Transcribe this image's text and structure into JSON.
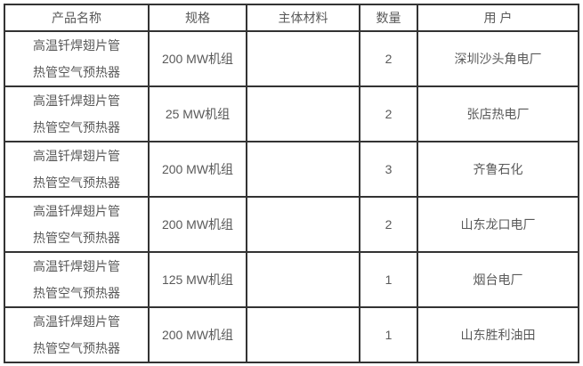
{
  "colors": {
    "border": "#333333",
    "text": "#595959",
    "background": "#ffffff"
  },
  "table": {
    "headers": {
      "product": "产品名称",
      "spec": "规格",
      "material": "主体材料",
      "qty": "数量",
      "customer": "用 户"
    },
    "rows": [
      {
        "product": "高温钎焊翅片管\n热管空气预热器",
        "spec": "200 MW机组",
        "material": "",
        "qty": "2",
        "customer": "深圳沙头角电厂"
      },
      {
        "product": "高温钎焊翅片管\n热管空气预热器",
        "spec": "25 MW机组",
        "material": "",
        "qty": "2",
        "customer": "张店热电厂"
      },
      {
        "product": "高温钎焊翅片管\n热管空气预热器",
        "spec": "200 MW机组",
        "material": "",
        "qty": "3",
        "customer": "齐鲁石化"
      },
      {
        "product": "高温钎焊翅片管\n热管空气预热器",
        "spec": "200 MW机组",
        "material": "",
        "qty": "2",
        "customer": "山东龙口电厂"
      },
      {
        "product": "高温钎焊翅片管\n热管空气预热器",
        "spec": "125 MW机组",
        "material": "",
        "qty": "1",
        "customer": "烟台电厂"
      },
      {
        "product": "高温钎焊翅片管\n热管空气预热器",
        "spec": "200 MW机组",
        "material": "",
        "qty": "1",
        "customer": "山东胜利油田"
      }
    ]
  }
}
